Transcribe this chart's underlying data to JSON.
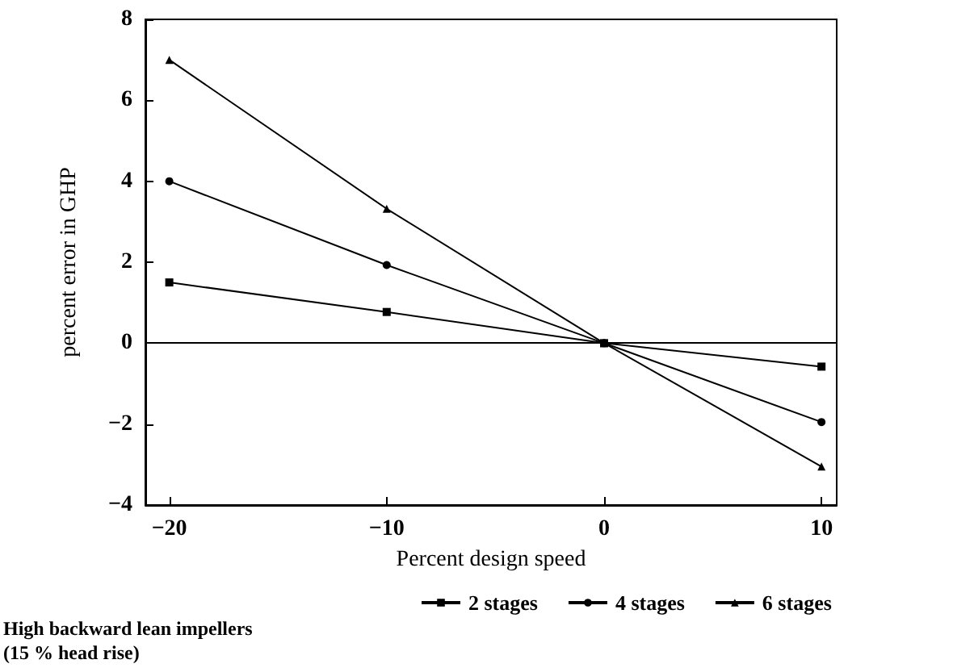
{
  "chart_data": {
    "type": "line",
    "xlabel": "Percent design speed",
    "ylabel": "percent error in GHP",
    "x": [
      -20,
      -10,
      0,
      10
    ],
    "series": [
      {
        "name": "2 stages",
        "color": "#000000",
        "marker": "square",
        "values": [
          1.5,
          0.77,
          0,
          -0.58
        ]
      },
      {
        "name": "4 stages",
        "color": "#000000",
        "marker": "circle",
        "values": [
          4.0,
          1.93,
          0,
          -1.95
        ]
      },
      {
        "name": "6 stages",
        "color": "#000000",
        "marker": "triangle",
        "values": [
          7.0,
          3.32,
          0,
          -3.05
        ]
      }
    ],
    "xlim": [
      -21.1,
      10.7
    ],
    "xticks": [
      {
        "value": -20,
        "label": "−20"
      },
      {
        "value": -10,
        "label": "−10"
      },
      0,
      10
    ],
    "ylim": [
      -4,
      8
    ],
    "yticks": [
      {
        "value": -4,
        "label": "−4"
      },
      {
        "value": -2,
        "label": "−2"
      },
      0,
      2,
      4,
      6,
      8
    ],
    "ref_lines": [
      {
        "axis": "y",
        "value": 0,
        "color": "#000000"
      }
    ],
    "grid": false,
    "legend": "bottom",
    "line_style": "solid",
    "annotations": [
      "High backward lean impellers\n(15 % head rise)"
    ]
  }
}
